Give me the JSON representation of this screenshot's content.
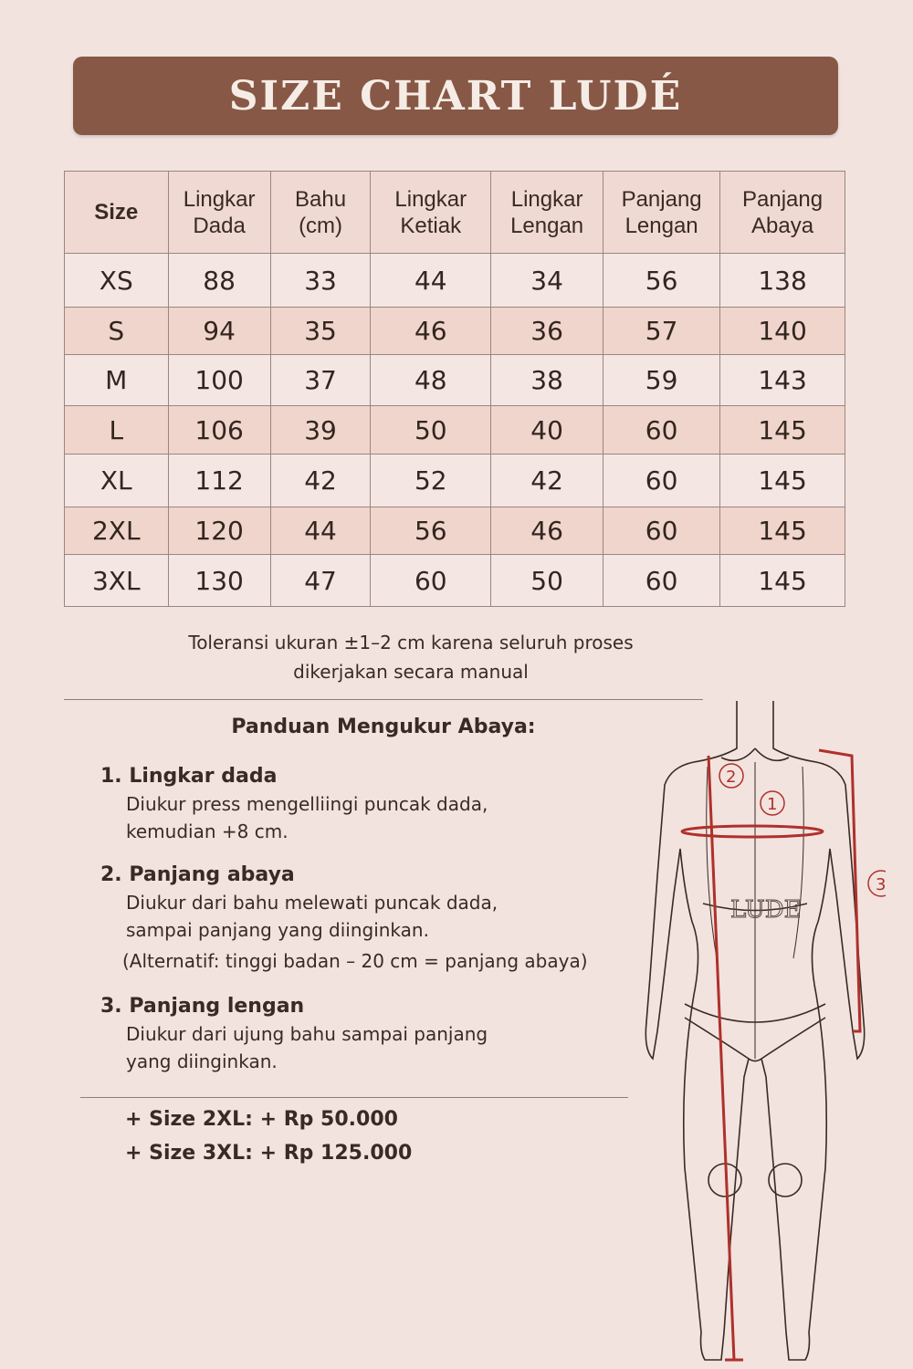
{
  "title": "SIZE CHART LUDÉ",
  "table": {
    "headers": [
      [
        "Size",
        ""
      ],
      [
        "Lingkar",
        "Dada"
      ],
      [
        "Bahu",
        "(cm)"
      ],
      [
        "Lingkar",
        "Ketiak"
      ],
      [
        "Lingkar",
        "Lengan"
      ],
      [
        "Panjang",
        "Lengan"
      ],
      [
        "Panjang",
        "Abaya"
      ]
    ],
    "rows": [
      [
        "XS",
        "88",
        "33",
        "44",
        "34",
        "56",
        "138"
      ],
      [
        "S",
        "94",
        "35",
        "46",
        "36",
        "57",
        "140"
      ],
      [
        "M",
        "100",
        "37",
        "48",
        "38",
        "59",
        "143"
      ],
      [
        "L",
        "106",
        "39",
        "50",
        "40",
        "60",
        "145"
      ],
      [
        "XL",
        "112",
        "42",
        "52",
        "42",
        "60",
        "145"
      ],
      [
        "2XL",
        "120",
        "44",
        "56",
        "46",
        "60",
        "145"
      ],
      [
        "3XL",
        "130",
        "47",
        "60",
        "50",
        "60",
        "145"
      ]
    ]
  },
  "note": {
    "line1": "Toleransi ukuran ±1–2 cm karena seluruh proses",
    "line2": "dikerjakan secara manual"
  },
  "guide": {
    "title": "Panduan Mengukur Abaya:",
    "items": [
      {
        "head": "1. Lingkar dada",
        "lines": [
          "Diukur press mengelliingi puncak dada,",
          "kemudian +8 cm."
        ]
      },
      {
        "head": "2. Panjang abaya",
        "lines": [
          "Diukur dari bahu melewati puncak dada,",
          "sampai panjang yang diinginkan.",
          "(Alternatif: tinggi badan – 20 cm = panjang abaya)"
        ]
      },
      {
        "head": "3. Panjang lengan",
        "lines": [
          "Diukur dari ujung bahu sampai panjang",
          "yang diinginkan."
        ]
      }
    ]
  },
  "prices": [
    "+ Size 2XL: + Rp 50.000",
    "+ Size 3XL: + Rp 125.000"
  ],
  "figure": {
    "brand": "LUDE",
    "markers": [
      "1",
      "2",
      "3"
    ],
    "measure_color": "#b0302a"
  }
}
